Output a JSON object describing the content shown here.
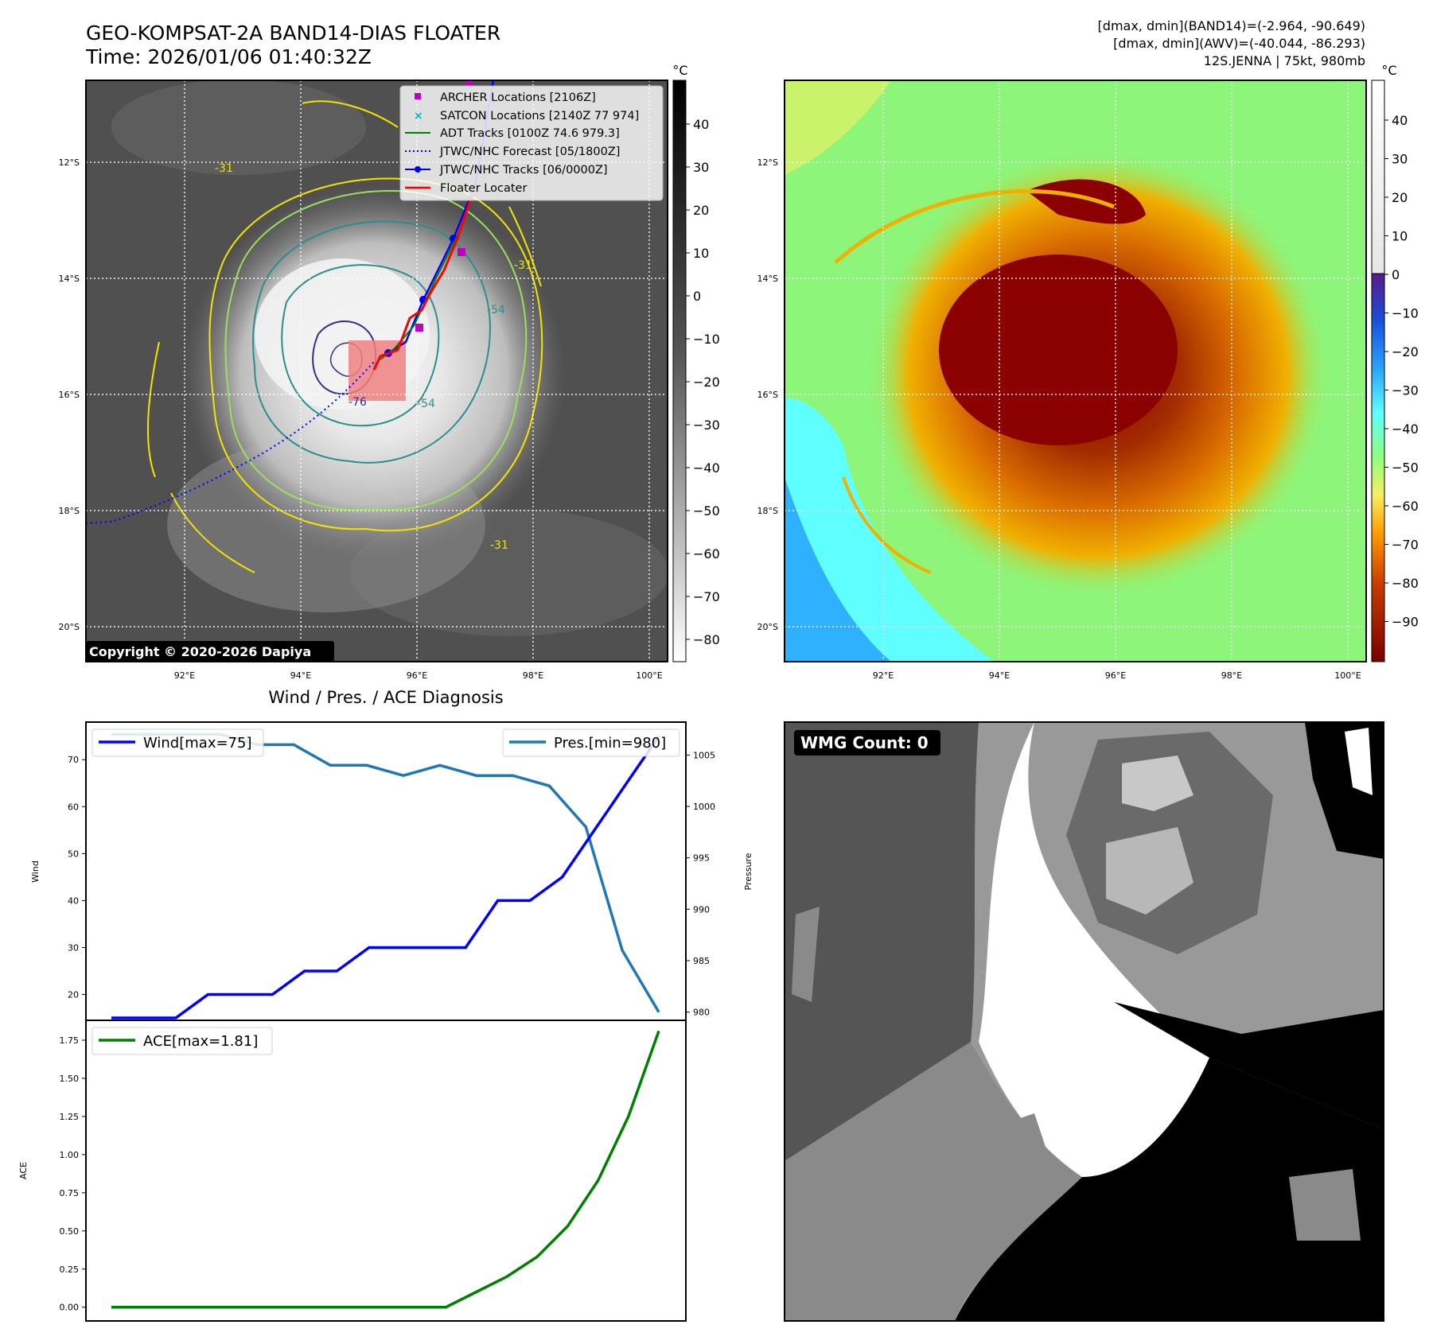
{
  "header": {
    "title_line1": "GEO-KOMPSAT-2A BAND14-DIAS FLOATER",
    "title_line2": "Time: 2026/01/06 01:40:32Z",
    "info_line1": "[dmax, dmin](BAND14)=(-2.964, -90.649)",
    "info_line2": "[dmax, dmin](AWV)=(-40.044, -86.293)",
    "info_line3": "12S.JENNA | 75kt, 980mb"
  },
  "map_axes": {
    "lat_labels": [
      "12°S",
      "14°S",
      "16°S",
      "18°S",
      "20°S"
    ],
    "lon_labels": [
      "92°E",
      "94°E",
      "96°E",
      "98°E",
      "100°E"
    ]
  },
  "ir_panel": {
    "copyright": "Copyright © 2020-2026 Dapiya",
    "contour_labels": [
      "-31",
      "-54",
      "-54",
      "-76",
      "-31",
      "-31"
    ],
    "colorbar_unit": "°C",
    "colorbar_ticks": [
      "40",
      "30",
      "20",
      "10",
      "0",
      "−10",
      "−20",
      "−30",
      "−40",
      "−50",
      "−60",
      "−70",
      "−80"
    ],
    "legend": [
      {
        "label": "ARCHER Locations [2106Z]",
        "color": "#c000c0"
      },
      {
        "label": "SATCON Locations [2140Z 77 974]",
        "color": "#00b8b8"
      },
      {
        "label": "ADT Tracks [0100Z 74.6 979.3]",
        "color": "#008000"
      },
      {
        "label": "JTWC/NHC Forecast [05/1800Z]",
        "color": "#0000ff"
      },
      {
        "label": "JTWC/NHC Tracks [06/0000Z]",
        "color": "#0000ff"
      },
      {
        "label": "Floater Locater",
        "color": "#ff0000"
      }
    ]
  },
  "awv_panel": {
    "colorbar_unit": "°C",
    "colorbar_ticks": [
      "40",
      "30",
      "20",
      "10",
      "0",
      "−10",
      "−20",
      "−30",
      "−40",
      "−50",
      "−60",
      "−70",
      "−80",
      "−90"
    ]
  },
  "wmg_panel": {
    "count_label": "WMG Count: 0"
  },
  "colors": {
    "wind": "#0000ff",
    "pressure": "#1f77b4",
    "ace": "#008000"
  },
  "chart_data": [
    {
      "type": "line",
      "title": "Wind / Pres. / ACE Diagnosis",
      "ylabel": "Wind",
      "y2label": "Pressure",
      "ylim": [
        14.5,
        78
      ],
      "y2lim": [
        979.2,
        1008.2
      ],
      "yticks": [
        20,
        30,
        40,
        50,
        60,
        70
      ],
      "y2ticks": [
        980,
        985,
        990,
        995,
        1000,
        1005
      ],
      "series": [
        {
          "name": "Wind[max=75]",
          "axis": "left",
          "values": [
            15,
            15,
            15,
            20,
            20,
            20,
            25,
            25,
            30,
            30,
            30,
            30,
            40,
            40,
            45,
            55,
            65,
            75
          ]
        },
        {
          "name": "Pres.[min=980]",
          "axis": "right",
          "values": [
            1007,
            1007,
            1007,
            1007,
            1006,
            1006,
            1004,
            1004,
            1003,
            1004,
            1003,
            1003,
            1002,
            998,
            986,
            980
          ]
        }
      ]
    },
    {
      "type": "line",
      "ylabel": "ACE",
      "ylim": [
        -0.09,
        1.88
      ],
      "yticks": [
        "0.00",
        "0.25",
        "0.50",
        "0.75",
        "1.00",
        "1.25",
        "1.50",
        "1.75"
      ],
      "series": [
        {
          "name": "ACE[max=1.81]",
          "values": [
            0,
            0,
            0,
            0,
            0,
            0,
            0,
            0,
            0,
            0,
            0,
            0,
            0.1,
            0.2,
            0.33,
            0.53,
            0.83,
            1.25,
            1.81
          ]
        }
      ]
    }
  ]
}
